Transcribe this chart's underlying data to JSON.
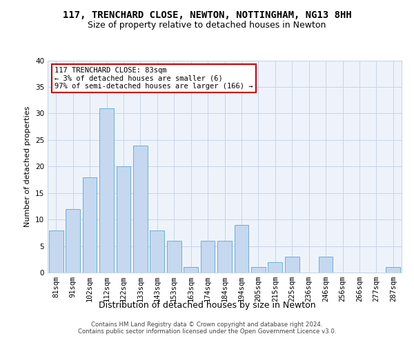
{
  "title1": "117, TRENCHARD CLOSE, NEWTON, NOTTINGHAM, NG13 8HH",
  "title2": "Size of property relative to detached houses in Newton",
  "xlabel": "Distribution of detached houses by size in Newton",
  "ylabel": "Number of detached properties",
  "categories": [
    "81sqm",
    "91sqm",
    "102sqm",
    "112sqm",
    "122sqm",
    "133sqm",
    "143sqm",
    "153sqm",
    "163sqm",
    "174sqm",
    "184sqm",
    "194sqm",
    "205sqm",
    "215sqm",
    "225sqm",
    "236sqm",
    "246sqm",
    "256sqm",
    "266sqm",
    "277sqm",
    "287sqm"
  ],
  "values": [
    8,
    12,
    18,
    31,
    20,
    24,
    8,
    6,
    1,
    6,
    6,
    9,
    1,
    2,
    3,
    0,
    3,
    0,
    0,
    0,
    1
  ],
  "bar_color": "#c5d8f0",
  "bar_edge_color": "#6baed6",
  "ylim": [
    0,
    40
  ],
  "yticks": [
    0,
    5,
    10,
    15,
    20,
    25,
    30,
    35,
    40
  ],
  "annotation_text": "117 TRENCHARD CLOSE: 83sqm\n← 3% of detached houses are smaller (6)\n97% of semi-detached houses are larger (166) →",
  "annotation_box_color": "#ffffff",
  "annotation_box_edge_color": "#cc0000",
  "footer_text": "Contains HM Land Registry data © Crown copyright and database right 2024.\nContains public sector information licensed under the Open Government Licence v3.0.",
  "background_color": "#ffffff",
  "grid_color": "#c8d4e8",
  "title1_fontsize": 10,
  "title2_fontsize": 9,
  "ylabel_fontsize": 8,
  "xlabel_fontsize": 9,
  "tick_fontsize": 7.5,
  "annot_fontsize": 7.5
}
